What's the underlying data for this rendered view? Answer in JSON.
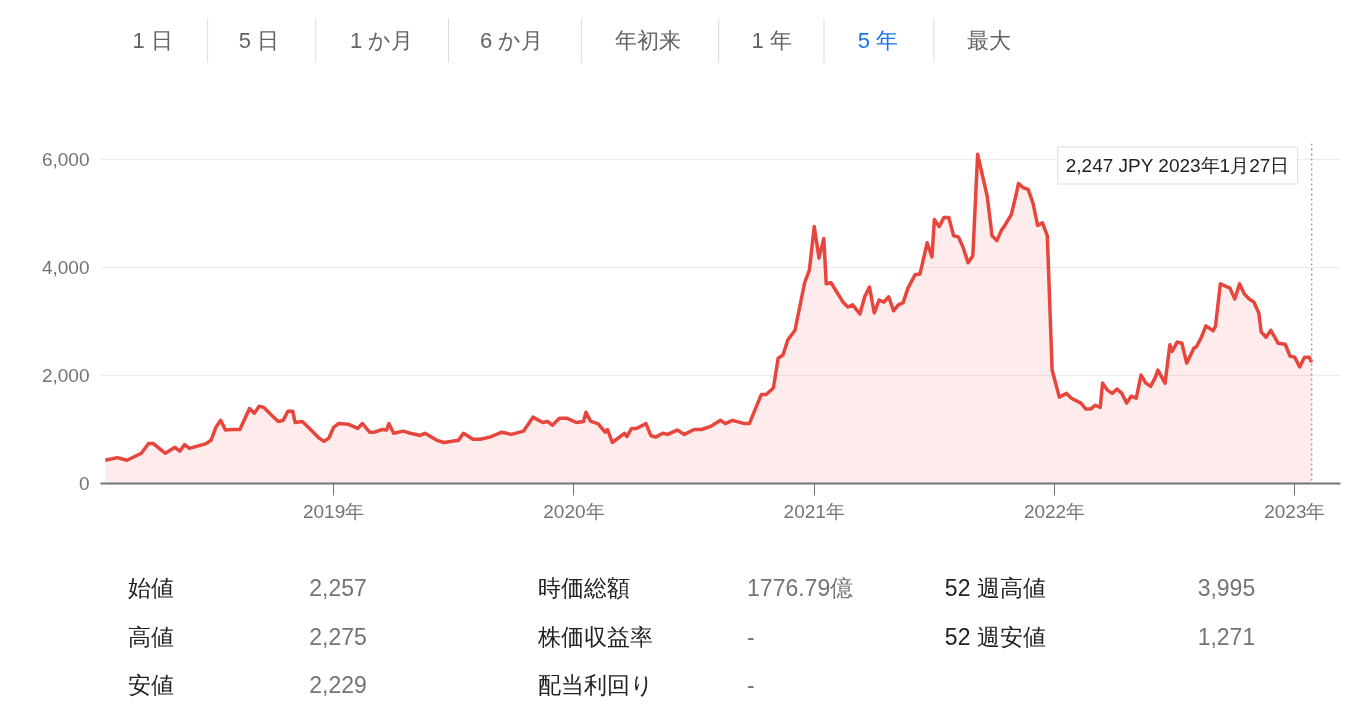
{
  "chart_data": {
    "type": "area",
    "grid": "y",
    "marker": "none",
    "line_style": "solid",
    "xlim": [
      2018.03,
      2023.19
    ],
    "ylim": [
      0,
      6300
    ],
    "xticks": [
      {
        "value": 2019,
        "label": "2019年"
      },
      {
        "value": 2020,
        "label": "2020年"
      },
      {
        "value": 2021,
        "label": "2021年"
      },
      {
        "value": 2022,
        "label": "2022年"
      },
      {
        "value": 2023,
        "label": "2023年"
      }
    ],
    "yticks": [
      0,
      {
        "value": 2000,
        "label": "2,000"
      },
      {
        "value": 4000,
        "label": "4,000"
      },
      {
        "value": 6000,
        "label": "6,000"
      }
    ],
    "x": [
      2018.05,
      2018.1,
      2018.14,
      2018.2,
      2018.23,
      2018.25,
      2018.3,
      2018.34,
      2018.36,
      2018.38,
      2018.4,
      2018.47,
      2018.49,
      2018.51,
      2018.53,
      2018.55,
      2018.58,
      2018.61,
      2018.65,
      2018.67,
      2018.69,
      2018.71,
      2018.75,
      2018.77,
      2018.79,
      2018.81,
      2018.83,
      2018.84,
      2018.87,
      2018.9,
      2018.94,
      2018.96,
      2018.98,
      2019.0,
      2019.02,
      2019.06,
      2019.1,
      2019.12,
      2019.15,
      2019.17,
      2019.2,
      2019.22,
      2019.23,
      2019.25,
      2019.29,
      2019.32,
      2019.36,
      2019.38,
      2019.43,
      2019.46,
      2019.52,
      2019.54,
      2019.58,
      2019.61,
      2019.65,
      2019.7,
      2019.74,
      2019.79,
      2019.83,
      2019.87,
      2019.89,
      2019.91,
      2019.94,
      2019.97,
      2020.01,
      2020.04,
      2020.05,
      2020.07,
      2020.1,
      2020.13,
      2020.14,
      2020.16,
      2020.21,
      2020.22,
      2020.24,
      2020.26,
      2020.3,
      2020.32,
      2020.34,
      2020.37,
      2020.39,
      2020.43,
      2020.46,
      2020.5,
      2020.53,
      2020.57,
      2020.61,
      2020.63,
      2020.66,
      2020.71,
      2020.73,
      2020.78,
      2020.8,
      2020.83,
      2020.85,
      2020.87,
      2020.89,
      2020.92,
      2020.96,
      2020.98,
      2021.0,
      2021.02,
      2021.04,
      2021.05,
      2021.07,
      2021.12,
      2021.14,
      2021.16,
      2021.19,
      2021.21,
      2021.23,
      2021.25,
      2021.27,
      2021.29,
      2021.31,
      2021.33,
      2021.35,
      2021.37,
      2021.39,
      2021.42,
      2021.44,
      2021.47,
      2021.49,
      2021.5,
      2021.52,
      2021.54,
      2021.56,
      2021.58,
      2021.6,
      2021.62,
      2021.64,
      2021.66,
      2021.68,
      2021.72,
      2021.74,
      2021.76,
      2021.78,
      2021.79,
      2021.82,
      2021.84,
      2021.85,
      2021.87,
      2021.89,
      2021.91,
      2021.93,
      2021.95,
      2021.97,
      2021.99,
      2022.02,
      2022.05,
      2022.07,
      2022.11,
      2022.13,
      2022.15,
      2022.17,
      2022.19,
      2022.2,
      2022.22,
      2022.24,
      2022.26,
      2022.28,
      2022.3,
      2022.32,
      2022.34,
      2022.36,
      2022.38,
      2022.4,
      2022.42,
      2022.43,
      2022.46,
      2022.48,
      2022.49,
      2022.51,
      2022.53,
      2022.55,
      2022.58,
      2022.59,
      2022.61,
      2022.63,
      2022.66,
      2022.67,
      2022.69,
      2022.73,
      2022.75,
      2022.77,
      2022.79,
      2022.81,
      2022.83,
      2022.85,
      2022.86,
      2022.88,
      2022.9,
      2022.93,
      2022.96,
      2022.98,
      2023.0,
      2023.02,
      2023.04,
      2023.06,
      2023.07
    ],
    "series": [
      {
        "color": "#e8453c",
        "values": [
          430,
          480,
          430,
          560,
          740,
          740,
          560,
          670,
          600,
          720,
          650,
          740,
          800,
          1040,
          1170,
          990,
          1000,
          1000,
          1390,
          1300,
          1430,
          1410,
          1230,
          1150,
          1170,
          1340,
          1340,
          1130,
          1150,
          1020,
          840,
          780,
          840,
          1040,
          1110,
          1100,
          1020,
          1110,
          950,
          950,
          1000,
          990,
          1110,
          930,
          970,
          930,
          890,
          930,
          800,
          760,
          800,
          930,
          820,
          820,
          860,
          950,
          910,
          970,
          1230,
          1130,
          1150,
          1080,
          1210,
          1210,
          1130,
          1150,
          1320,
          1150,
          1110,
          950,
          1000,
          760,
          930,
          870,
          1020,
          1020,
          1110,
          890,
          860,
          930,
          910,
          990,
          910,
          1000,
          1000,
          1060,
          1170,
          1110,
          1170,
          1110,
          1110,
          1650,
          1650,
          1770,
          2320,
          2380,
          2660,
          2840,
          3720,
          3960,
          4760,
          4180,
          4540,
          3700,
          3720,
          3360,
          3270,
          3310,
          3140,
          3460,
          3640,
          3160,
          3400,
          3360,
          3460,
          3200,
          3310,
          3350,
          3620,
          3870,
          3880,
          4460,
          4200,
          4890,
          4760,
          4930,
          4930,
          4590,
          4570,
          4370,
          4090,
          4220,
          6100,
          5320,
          4590,
          4500,
          4700,
          4760,
          4980,
          5350,
          5560,
          5480,
          5450,
          5200,
          4780,
          4830,
          4590,
          2100,
          1600,
          1670,
          1580,
          1490,
          1380,
          1380,
          1450,
          1410,
          1860,
          1730,
          1670,
          1750,
          1670,
          1490,
          1620,
          1580,
          2010,
          1860,
          1800,
          1970,
          2100,
          1860,
          2570,
          2450,
          2620,
          2600,
          2230,
          2510,
          2530,
          2700,
          2920,
          2830,
          2920,
          3700,
          3620,
          3420,
          3700,
          3510,
          3420,
          3360,
          3160,
          2810,
          2710,
          2840,
          2600,
          2580,
          2360,
          2340,
          2160,
          2340,
          2340,
          2247
        ]
      }
    ],
    "ref_lines": [
      {
        "axis": "x",
        "value": 2023.07,
        "line_style": "dotted",
        "color": "#9aa0a6",
        "label": "2,247 JPY 2023年1月27日"
      }
    ],
    "annotations": [
      "1 日",
      "5 日",
      "1 か月",
      "6 か月",
      "年初来",
      "1 年",
      "5 年",
      "最大",
      "始値",
      "2,257",
      "時価総額",
      "1776.79億",
      "52 週高値",
      "3,995",
      "高値",
      "2,275",
      "株価収益率",
      "-",
      "52 週安値",
      "1,271",
      "安値",
      "2,229",
      "配当利回り",
      "-"
    ]
  }
}
